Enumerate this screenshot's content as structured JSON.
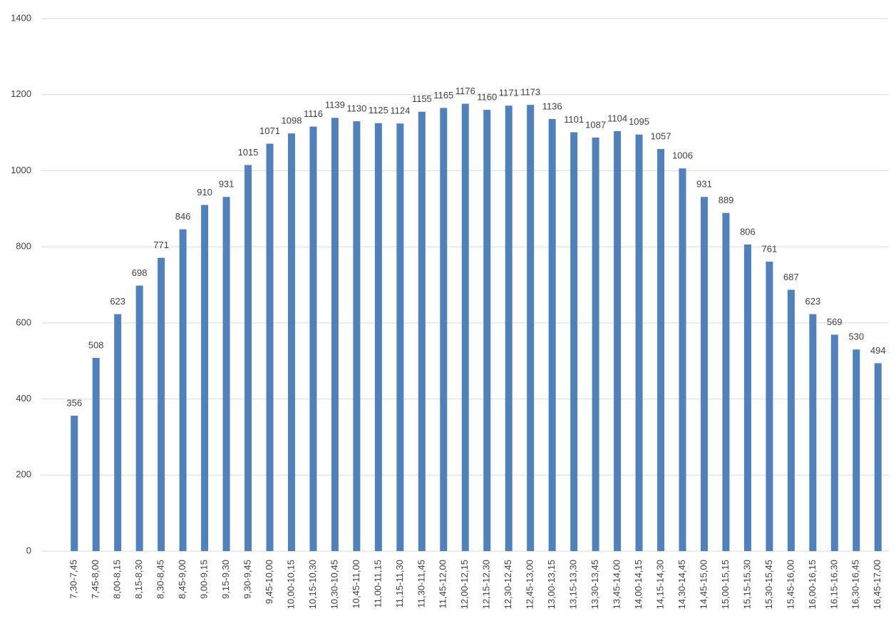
{
  "chart_data": {
    "type": "bar",
    "categories": [
      "7,30-7,45",
      "7,45-8,00",
      "8,00-8,15",
      "8,15-8,30",
      "8,30-8,45",
      "8,45-9,00",
      "9,00-9,15",
      "9,15-9,30",
      "9,30-9,45",
      "9,45-10,00",
      "10,00-10,15",
      "10,15-10,30",
      "10,30-10,45",
      "10,45-11,00",
      "11,00-11,15",
      "11,15-11,30",
      "11,30-11,45",
      "11,45-12,00",
      "12,00-12,15",
      "12,15-12,30",
      "12,30-12,45",
      "12,45-13,00",
      "13,00-13,15",
      "13,15-13,30",
      "13,30-13,45",
      "13,45-14,00",
      "14,00-14,15",
      "14,15-14,30",
      "14,30-14,45",
      "14,45-15,00",
      "15,00-15,15",
      "15,15-15,30",
      "15,30-15,45",
      "15,45-16,00",
      "16,00-16,15",
      "16,15-16,30",
      "16,30-16,45",
      "16,45-17,00"
    ],
    "values": [
      356,
      508,
      623,
      698,
      771,
      846,
      910,
      931,
      1015,
      1071,
      1098,
      1116,
      1139,
      1130,
      1125,
      1124,
      1155,
      1165,
      1176,
      1160,
      1171,
      1173,
      1136,
      1101,
      1087,
      1104,
      1095,
      1057,
      1006,
      931,
      889,
      806,
      761,
      687,
      623,
      569,
      530,
      494
    ],
    "color": "#4f81bd",
    "ylim": [
      0,
      1400
    ],
    "yticks": [
      0,
      200,
      400,
      600,
      800,
      1000,
      1200,
      1400
    ],
    "grid": true
  }
}
